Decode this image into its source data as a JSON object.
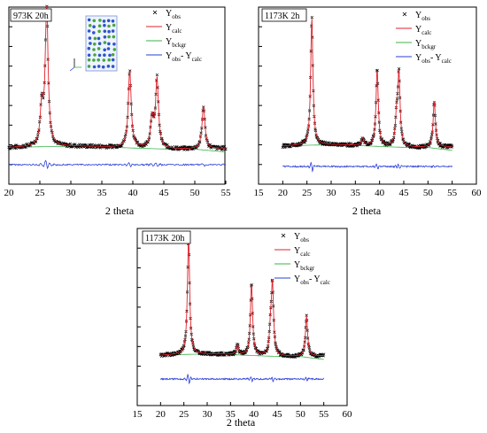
{
  "colors": {
    "obs": "#000000",
    "calc": "#e0202a",
    "bckgr": "#3ab54a",
    "diff": "#2a3fd8",
    "text": "#000000"
  },
  "chart_data": [
    {
      "type": "line",
      "title": "973K 20h",
      "xlabel": "2 theta",
      "ylabel": "",
      "xlim": [
        20,
        55
      ],
      "xticks": [
        20,
        25,
        30,
        35,
        40,
        45,
        50,
        55
      ],
      "peaks": [
        {
          "x": 25.3,
          "y": 0.28
        },
        {
          "x": 26.1,
          "y": 1.0
        },
        {
          "x": 39.5,
          "y": 0.56
        },
        {
          "x": 43.1,
          "y": 0.21
        },
        {
          "x": 43.9,
          "y": 0.5
        },
        {
          "x": 51.4,
          "y": 0.31
        }
      ],
      "inset_structure": true,
      "legend": [
        {
          "base": "Y",
          "sub": "obs",
          "series": "obs"
        },
        {
          "base": "Y",
          "sub": "calc",
          "series": "calc"
        },
        {
          "base": "Y",
          "sub": "bckgr",
          "series": "bckgr"
        },
        {
          "base": "Y",
          "sub": "obs",
          "mid": "- Y",
          "sub2": "calc",
          "series": "diff"
        }
      ]
    },
    {
      "type": "line",
      "title": "1173K 2h",
      "xlabel": "2 theta",
      "ylabel": "",
      "xlim": [
        15,
        60
      ],
      "xticks": [
        15,
        20,
        25,
        30,
        35,
        40,
        45,
        50,
        55,
        60
      ],
      "peaks": [
        {
          "x": 26.0,
          "y": 1.0
        },
        {
          "x": 36.5,
          "y": 0.06
        },
        {
          "x": 39.5,
          "y": 0.6
        },
        {
          "x": 43.5,
          "y": 0.2
        },
        {
          "x": 44.0,
          "y": 0.56
        },
        {
          "x": 51.3,
          "y": 0.36
        }
      ],
      "inset_structure": false,
      "legend": [
        {
          "base": "Y",
          "sub": "obs",
          "series": "obs"
        },
        {
          "base": "Y",
          "sub": "calc",
          "series": "calc"
        },
        {
          "base": "Y",
          "sub": "bckgr",
          "series": "bckgr"
        },
        {
          "base": "Y",
          "sub": "obs",
          "mid": "- Y",
          "sub2": "calc",
          "series": "diff"
        }
      ]
    },
    {
      "type": "line",
      "title": "1173K 20h",
      "xlabel": "2 theta",
      "ylabel": "",
      "xlim": [
        15,
        60
      ],
      "xticks": [
        15,
        20,
        25,
        30,
        35,
        40,
        45,
        50,
        55,
        60
      ],
      "peaks": [
        {
          "x": 26.0,
          "y": 1.0
        },
        {
          "x": 36.5,
          "y": 0.08
        },
        {
          "x": 39.5,
          "y": 0.6
        },
        {
          "x": 43.6,
          "y": 0.2
        },
        {
          "x": 44.0,
          "y": 0.58
        },
        {
          "x": 51.3,
          "y": 0.34
        }
      ],
      "inset_structure": false,
      "legend": [
        {
          "base": "Y",
          "sub": "obs",
          "series": "obs"
        },
        {
          "base": "Y",
          "sub": "calc",
          "series": "calc"
        },
        {
          "base": "Y",
          "sub": "bckgr",
          "series": "bckgr"
        },
        {
          "base": "Y",
          "sub": "obs",
          "mid": "- Y",
          "sub2": "calc",
          "series": "diff"
        }
      ]
    }
  ]
}
